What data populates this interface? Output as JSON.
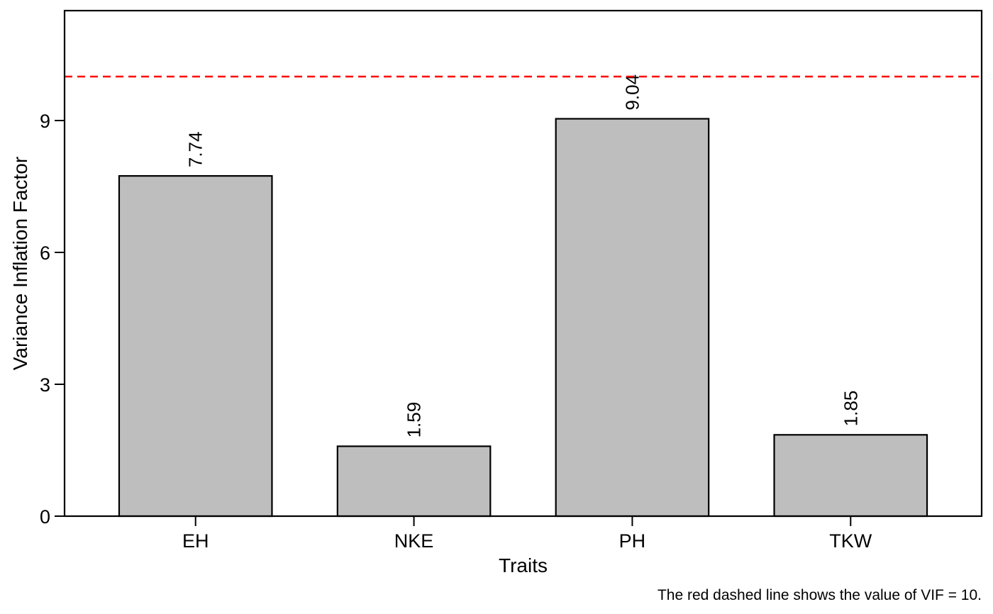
{
  "chart_data": {
    "type": "bar",
    "title": "",
    "xlabel": "Traits",
    "ylabel": "Variance Inflation Factor",
    "categories": [
      "EH",
      "NKE",
      "PH",
      "TKW"
    ],
    "values": [
      7.74,
      1.59,
      9.04,
      1.85
    ],
    "value_labels": [
      "7.74",
      "1.59",
      "9.04",
      "1.85"
    ],
    "y_ticks": [
      0,
      3,
      6,
      9
    ],
    "y_tick_labels": [
      "0",
      "3",
      "6",
      "9"
    ],
    "ylim": [
      0,
      11.5
    ],
    "reference_line": {
      "value": 10,
      "color": "#ff0000",
      "style": "dashed"
    },
    "bar_fill": "#bebebe",
    "bar_stroke": "#000000",
    "grid": false,
    "caption": "The red dashed line shows the value of VIF = 10."
  }
}
